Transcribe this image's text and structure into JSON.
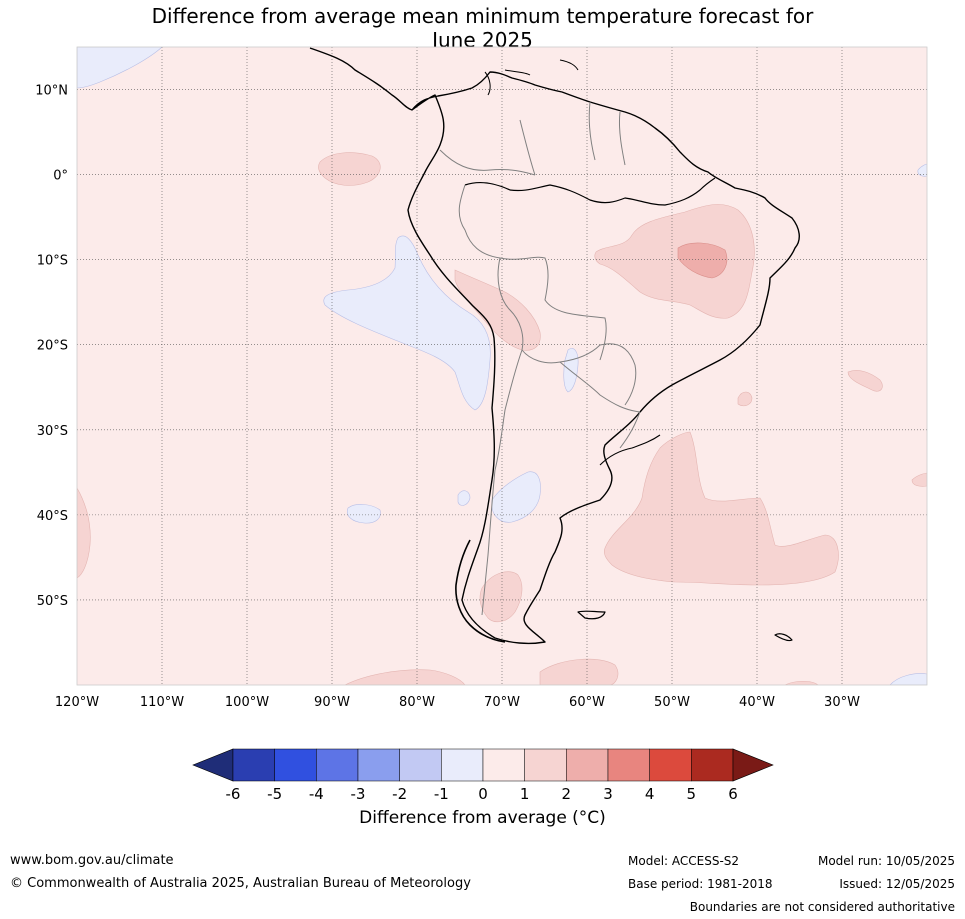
{
  "title_line1": "Difference from average mean minimum temperature forecast for",
  "title_line2": "June 2025",
  "axes": {
    "lon_labels": [
      "120°W",
      "110°W",
      "100°W",
      "90°W",
      "80°W",
      "70°W",
      "60°W",
      "50°W",
      "40°W",
      "30°W"
    ],
    "lat_labels": [
      "10°N",
      "0°",
      "10°S",
      "20°S",
      "30°S",
      "40°S",
      "50°S"
    ],
    "lon_range": [
      -120,
      -20
    ],
    "lat_range": [
      -60,
      15
    ],
    "grid": "dotted"
  },
  "colorbar": {
    "ticks": [
      "-6",
      "-5",
      "-4",
      "-3",
      "-2",
      "-1",
      "0",
      "1",
      "2",
      "3",
      "4",
      "5",
      "6"
    ],
    "colors": [
      "#2a3eb1",
      "#3050e0",
      "#5d74e6",
      "#8a9eee",
      "#c2c9f3",
      "#e9ecfb",
      "#fcebea",
      "#f6d4d2",
      "#eeaeab",
      "#e8857f",
      "#dc4a3d",
      "#ab2a20"
    ],
    "under_color": "#1f2d78",
    "over_color": "#7a1a16",
    "label": "Difference from average (°C)"
  },
  "footer": {
    "website": "www.bom.gov.au/climate",
    "copyright": "© Commonwealth of Australia 2025, Australian Bureau of Meteorology",
    "model": "Model: ACCESS-S2",
    "base_period": "Base period: 1981-2018",
    "model_run": "Model run: 10/05/2025",
    "issued": "Issued: 12/05/2025",
    "disclaimer": "Boundaries are not considered authoritative"
  }
}
